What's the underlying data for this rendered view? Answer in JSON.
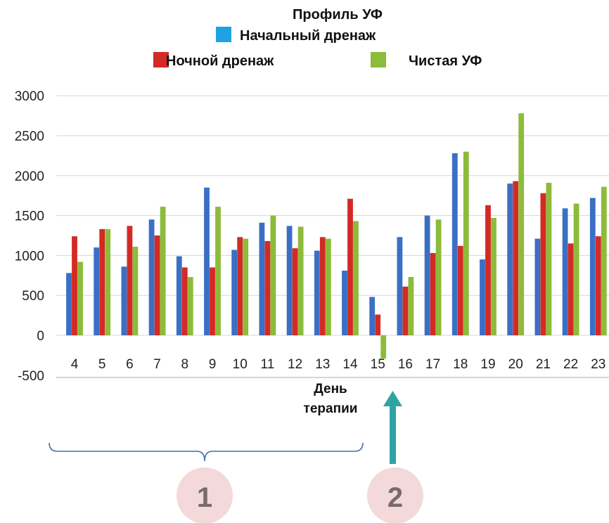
{
  "colors": {
    "series_0": "#3a6fc4",
    "series_1": "#d42a24",
    "series_2": "#8dbb3a",
    "legend_0": "#1fa3e0",
    "grid": "#d6d6d6",
    "axis": "#a8a8a8",
    "brace": "#3f6fb0",
    "arrow": "#2fa3a3",
    "marker_fill": "#f3d9d9"
  },
  "chart_data": {
    "type": "bar",
    "title": "Профиль УФ",
    "xlabel": "День\nтерапии",
    "ylabel": "",
    "ylim": [
      -500,
      3000
    ],
    "yticks": [
      -500,
      0,
      500,
      1000,
      1500,
      2000,
      2500,
      3000
    ],
    "grid": true,
    "legend": "top",
    "categories": [
      "4",
      "5",
      "6",
      "7",
      "8",
      "9",
      "10",
      "11",
      "12",
      "13",
      "14",
      "15",
      "16",
      "17",
      "18",
      "19",
      "20",
      "21",
      "22",
      "23"
    ],
    "series": [
      {
        "name": "Начальный дренаж",
        "values": [
          780,
          1100,
          860,
          1450,
          990,
          1850,
          1070,
          1410,
          1370,
          1060,
          810,
          480,
          1230,
          1500,
          2280,
          950,
          1900,
          1210,
          1590,
          1720
        ]
      },
      {
        "name": "Ночной дренаж",
        "values": [
          1240,
          1330,
          1370,
          1250,
          850,
          850,
          1230,
          1180,
          1090,
          1230,
          1710,
          260,
          610,
          1030,
          1120,
          1630,
          1930,
          1780,
          1150,
          1240
        ]
      },
      {
        "name": "Чистая УФ",
        "values": [
          920,
          1330,
          1110,
          1610,
          730,
          1610,
          1210,
          1500,
          1360,
          1210,
          1430,
          -290,
          730,
          1450,
          2300,
          1470,
          2780,
          1910,
          1650,
          1860
        ]
      }
    ]
  },
  "annotations": {
    "marker_1": "1",
    "marker_2": "2"
  }
}
